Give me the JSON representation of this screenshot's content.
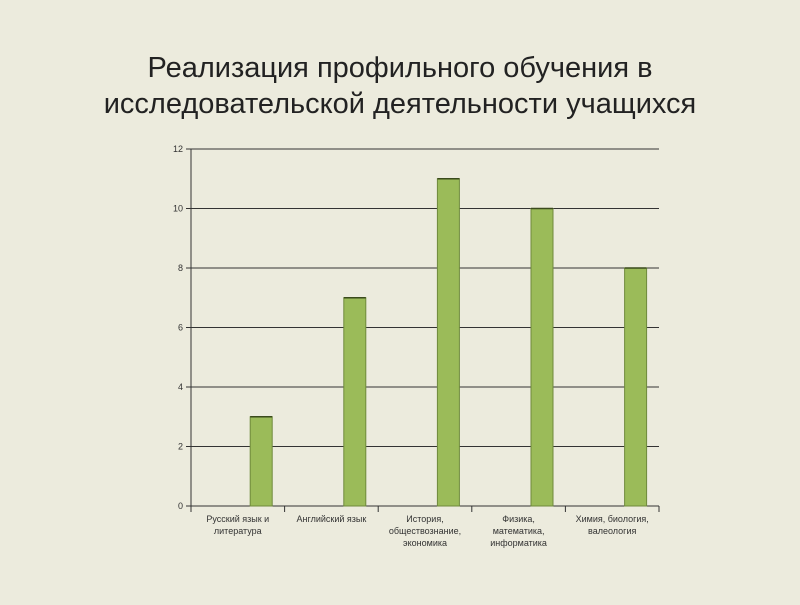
{
  "slide": {
    "title_line1": "Реализация профильного обучения в",
    "title_line2": "исследовательской деятельности учащихся"
  },
  "chart_data": {
    "type": "bar",
    "categories": [
      [
        "Русский язык и",
        "литература"
      ],
      [
        "Английский язык"
      ],
      [
        "История,",
        "обществознание,",
        "экономика"
      ],
      [
        "Физика,",
        "математика,",
        "информатика"
      ],
      [
        "Химия, биология,",
        "валеология"
      ]
    ],
    "values": [
      3,
      7,
      11,
      10,
      8
    ],
    "ylim": [
      0,
      12
    ],
    "yticks": [
      0,
      2,
      4,
      6,
      8,
      10,
      12
    ],
    "grid": true,
    "bar_color": "#9bbb59",
    "bar_edge_color": "#6f8a3c",
    "grid_color": "#333333"
  }
}
